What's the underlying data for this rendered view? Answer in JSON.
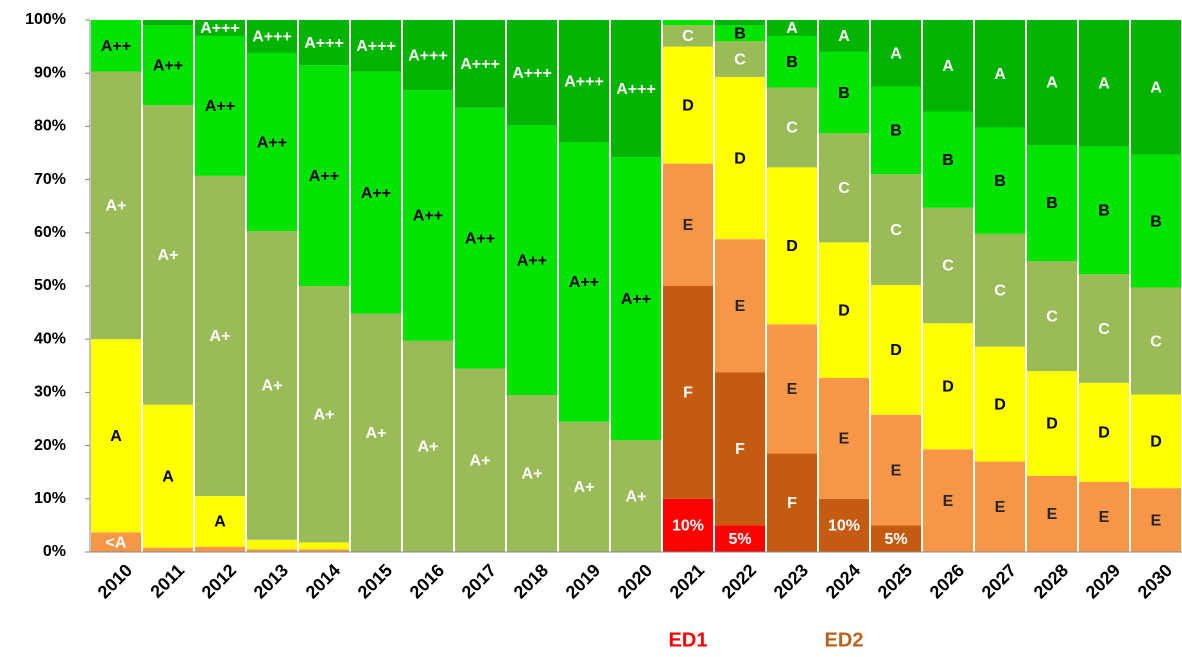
{
  "chart_data": {
    "type": "stacked-bar",
    "categories": [
      "2010",
      "2011",
      "2012",
      "2013",
      "2014",
      "2015",
      "2016",
      "2017",
      "2018",
      "2019",
      "2020",
      "2021",
      "2022",
      "2023",
      "2024",
      "2025",
      "2026",
      "2027",
      "2028",
      "2029",
      "2030"
    ],
    "ylim": [
      0,
      100
    ],
    "yticks": [
      {
        "value": 0,
        "label": "0%"
      },
      {
        "value": 10,
        "label": "10%"
      },
      {
        "value": 20,
        "label": "20%"
      },
      {
        "value": 30,
        "label": "30%"
      },
      {
        "value": 40,
        "label": "40%"
      },
      {
        "value": 50,
        "label": "50%"
      },
      {
        "value": 60,
        "label": "60%"
      },
      {
        "value": 70,
        "label": "70%"
      },
      {
        "value": 80,
        "label": "80%"
      },
      {
        "value": 90,
        "label": "90%"
      },
      {
        "value": 100,
        "label": "100%"
      }
    ],
    "grid": false,
    "series": [
      {
        "name": "<A",
        "color": "#f79646",
        "label_color": "#ffffff",
        "values": [
          3.7,
          0.8,
          1,
          0.5,
          0.5,
          null,
          null,
          null,
          null,
          null,
          null,
          null,
          null,
          null,
          null,
          null,
          null,
          null,
          null,
          null,
          null
        ]
      },
      {
        "name": "A",
        "color": "#ffff00",
        "label_color": "#000000",
        "values": [
          36.3,
          26.9,
          9.5,
          1.8,
          1.3,
          null,
          null,
          null,
          null,
          null,
          null,
          null,
          null,
          null,
          null,
          null,
          null,
          null,
          null,
          null,
          null
        ]
      },
      {
        "name": "A+",
        "color": "#9bbb59",
        "label_color": "#ffffff",
        "values": [
          50.3,
          56.3,
          60.2,
          58,
          48.2,
          44.8,
          39.7,
          34.5,
          29.5,
          24.5,
          21,
          null,
          null,
          null,
          null,
          null,
          null,
          null,
          null,
          null,
          null
        ]
      },
      {
        "name": "A++",
        "color": "#00e400",
        "label_color": "#000000",
        "values": [
          9.7,
          15,
          26.3,
          33.5,
          41.5,
          45.5,
          47.1,
          49,
          50.7,
          52.5,
          53.2,
          null,
          null,
          null,
          null,
          null,
          null,
          null,
          null,
          null,
          null
        ]
      },
      {
        "name": "A+++",
        "color": "#00b400",
        "label_color": "#ffffff",
        "values": [
          null,
          1,
          3,
          6.2,
          8.5,
          9.7,
          13.2,
          16.5,
          19.8,
          23,
          25.8,
          null,
          null,
          null,
          null,
          null,
          null,
          null,
          null,
          null,
          null
        ]
      },
      {
        "color": "#ff0000",
        "label_color": "#ffffff",
        "values": [
          null,
          null,
          null,
          null,
          null,
          null,
          null,
          null,
          null,
          null,
          null,
          10,
          5,
          null,
          null,
          null,
          null,
          null,
          null,
          null,
          null
        ],
        "value_labels": [
          null,
          null,
          null,
          null,
          null,
          null,
          null,
          null,
          null,
          null,
          null,
          "10%",
          "5%",
          null,
          null,
          null,
          null,
          null,
          null,
          null,
          null
        ]
      },
      {
        "name": "F",
        "color": "#c55a11",
        "label_color": "#ffffff",
        "values": [
          null,
          null,
          null,
          null,
          null,
          null,
          null,
          null,
          null,
          null,
          null,
          40,
          28.8,
          18.5,
          10,
          5,
          null,
          null,
          null,
          null,
          null
        ],
        "value_labels": [
          null,
          null,
          null,
          null,
          null,
          null,
          null,
          null,
          null,
          null,
          null,
          null,
          null,
          null,
          "10%",
          "5%",
          null,
          null,
          null,
          null,
          null
        ]
      },
      {
        "name": "E",
        "color": "#f79646",
        "label_color": "#262626",
        "values": [
          null,
          null,
          null,
          null,
          null,
          null,
          null,
          null,
          null,
          null,
          null,
          23,
          25,
          24.3,
          22.7,
          20.8,
          19.3,
          17,
          14.3,
          13.2,
          12
        ]
      },
      {
        "name": "D",
        "color": "#ffff00",
        "label_color": "#000000",
        "values": [
          null,
          null,
          null,
          null,
          null,
          null,
          null,
          null,
          null,
          null,
          null,
          22,
          30.5,
          29.5,
          25.5,
          24.4,
          23.7,
          21.6,
          19.7,
          18.6,
          17.6
        ]
      },
      {
        "name": "C",
        "color": "#9bbb59",
        "label_color": "#ffffff",
        "values": [
          null,
          null,
          null,
          null,
          null,
          null,
          null,
          null,
          null,
          null,
          null,
          4,
          6.7,
          15,
          20.5,
          20.8,
          21.7,
          21.2,
          20.7,
          20.4,
          20.1
        ]
      },
      {
        "name": "B",
        "color": "#00e400",
        "label_color": "#000000",
        "values": [
          null,
          null,
          null,
          null,
          null,
          null,
          null,
          null,
          null,
          null,
          null,
          1,
          3,
          9.7,
          15.3,
          16.5,
          18.1,
          20,
          21.8,
          24,
          25
        ]
      },
      {
        "name": "A",
        "color": "#00b400",
        "label_color": "#ffffff",
        "values": [
          null,
          null,
          null,
          null,
          null,
          null,
          null,
          null,
          null,
          null,
          null,
          null,
          1,
          3,
          6,
          12.5,
          17.2,
          20.2,
          23.5,
          23.8,
          25.3
        ]
      }
    ],
    "annotations": [
      {
        "text": "ED1",
        "color": "#ff0000",
        "category": "2021"
      },
      {
        "text": "ED2",
        "color": "#b8621b",
        "category": "2024"
      }
    ]
  }
}
